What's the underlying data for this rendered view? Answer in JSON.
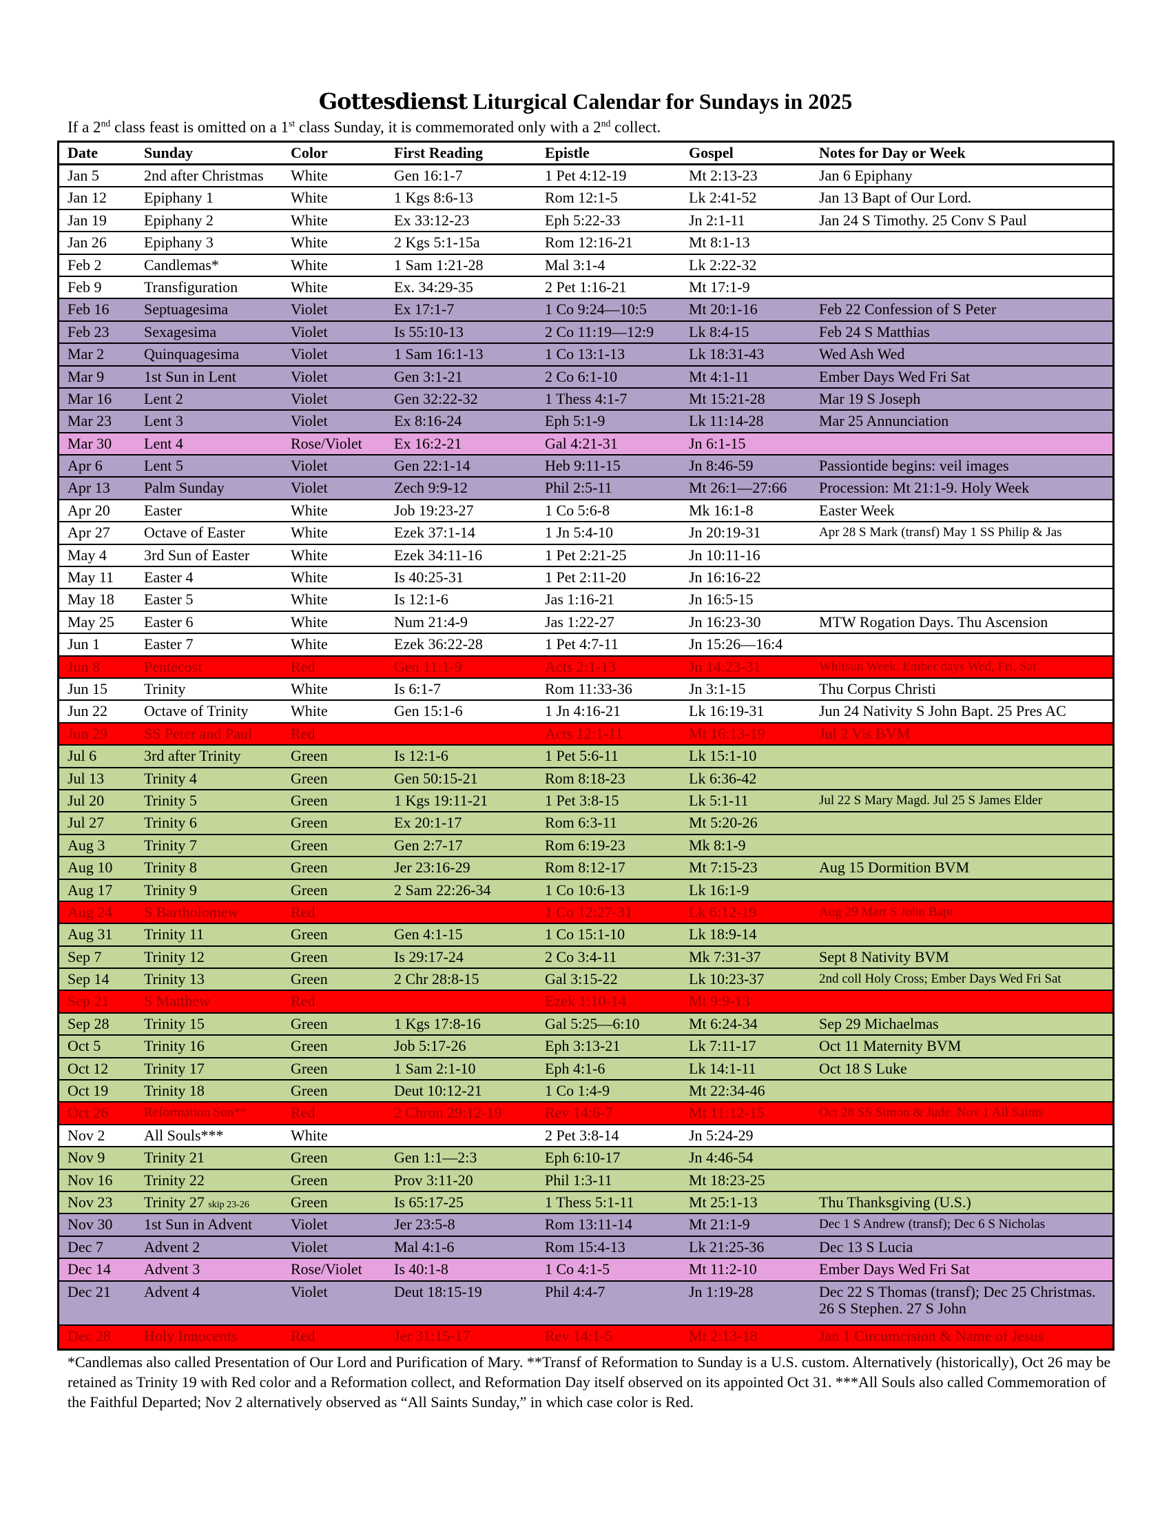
{
  "header": {
    "title_blackletter": "Gottesdienst",
    "title_rest": " Liturgical Calendar for Sundays in 2025",
    "subtitle": "If a 2nd class feast is omitted on a 1st class Sunday, it is commemorated only with a 2nd collect."
  },
  "colors": {
    "white": "#ffffff",
    "violet": "#b1a0c7",
    "rose": "#e6a2de",
    "red": "#ff0000",
    "green": "#c4d79b"
  },
  "columns": [
    "Date",
    "Sunday",
    "Color",
    "First Reading",
    "Epistle",
    "Gospel",
    "Notes for Day or Week"
  ],
  "rows": [
    {
      "date": "Jan 5",
      "sunday": "2nd after Christmas",
      "color": "White",
      "first": "Gen 16:1-7",
      "epistle": "1 Pet 4:12-19",
      "gospel": "Mt 2:13-23",
      "notes": "Jan 6 Epiphany"
    },
    {
      "date": "Jan 12",
      "sunday": "Epiphany 1",
      "color": "White",
      "first": "1 Kgs 8:6-13",
      "epistle": "Rom 12:1-5",
      "gospel": "Lk 2:41-52",
      "notes": "Jan 13 Bapt of Our Lord."
    },
    {
      "date": "Jan 19",
      "sunday": "Epiphany 2",
      "color": "White",
      "first": "Ex 33:12-23",
      "epistle": "Eph 5:22-33",
      "gospel": "Jn 2:1-11",
      "notes": "Jan 24 S Timothy. 25 Conv S Paul"
    },
    {
      "date": "Jan 26",
      "sunday": "Epiphany 3",
      "color": "White",
      "first": "2 Kgs 5:1-15a",
      "epistle": "Rom 12:16-21",
      "gospel": "Mt 8:1-13",
      "notes": ""
    },
    {
      "date": "Feb 2",
      "sunday": "Candlemas*",
      "color": "White",
      "first": "1 Sam 1:21-28",
      "epistle": "Mal 3:1-4",
      "gospel": "Lk 2:22-32",
      "notes": ""
    },
    {
      "date": "Feb 9",
      "sunday": "Transfiguration",
      "color": "White",
      "first": "Ex. 34:29-35",
      "epistle": "2 Pet 1:16-21",
      "gospel": "Mt 17:1-9",
      "notes": ""
    },
    {
      "date": "Feb 16",
      "sunday": "Septuagesima",
      "color": "Violet",
      "first": "Ex 17:1-7",
      "epistle": "1 Co 9:24—10:5",
      "gospel": "Mt 20:1-16",
      "notes": "Feb 22 Confession of S Peter"
    },
    {
      "date": "Feb 23",
      "sunday": "Sexagesima",
      "color": "Violet",
      "first": "Is 55:10-13",
      "epistle": "2 Co 11:19—12:9",
      "gospel": "Lk 8:4-15",
      "notes": "Feb 24 S Matthias"
    },
    {
      "date": "Mar 2",
      "sunday": "Quinquagesima",
      "color": "Violet",
      "first": "1 Sam 16:1-13",
      "epistle": "1 Co 13:1-13",
      "gospel": "Lk 18:31-43",
      "notes": "Wed Ash Wed"
    },
    {
      "date": "Mar 9",
      "sunday": "1st Sun in Lent",
      "color": "Violet",
      "first": "Gen 3:1-21",
      "epistle": "2 Co 6:1-10",
      "gospel": "Mt 4:1-11",
      "notes": "Ember Days Wed Fri Sat"
    },
    {
      "date": "Mar 16",
      "sunday": "Lent 2",
      "color": "Violet",
      "first": "Gen 32:22-32",
      "epistle": "1 Thess 4:1-7",
      "gospel": "Mt 15:21-28",
      "notes": "Mar 19 S Joseph"
    },
    {
      "date": "Mar 23",
      "sunday": "Lent 3",
      "color": "Violet",
      "first": "Ex 8:16-24",
      "epistle": "Eph 5:1-9",
      "gospel": "Lk 11:14-28",
      "notes": "Mar 25 Annunciation"
    },
    {
      "date": "Mar 30",
      "sunday": "Lent 4",
      "color": "Rose/Violet",
      "first": "Ex 16:2-21",
      "epistle": "Gal 4:21-31",
      "gospel": "Jn 6:1-15",
      "notes": ""
    },
    {
      "date": "Apr 6",
      "sunday": "Lent 5",
      "color": "Violet",
      "first": "Gen 22:1-14",
      "epistle": "Heb 9:11-15",
      "gospel": "Jn 8:46-59",
      "notes": "Passiontide begins: veil images"
    },
    {
      "date": "Apr 13",
      "sunday": "Palm Sunday",
      "color": "Violet",
      "first": "Zech 9:9-12",
      "epistle": "Phil 2:5-11",
      "gospel": "Mt 26:1—27:66",
      "notes": "Procession: Mt 21:1-9. Holy Week"
    },
    {
      "date": "Apr 20",
      "sunday": "Easter",
      "color": "White",
      "first": "Job 19:23-27",
      "epistle": "1 Co 5:6-8",
      "gospel": "Mk 16:1-8",
      "notes": "Easter Week"
    },
    {
      "date": "Apr 27",
      "sunday": "Octave of Easter",
      "color": "White",
      "first": "Ezek 37:1-14",
      "epistle": "1 Jn 5:4-10",
      "gospel": "Jn 20:19-31",
      "notes": "Apr 28 S Mark (transf) May 1 SS Philip & Jas",
      "small": true
    },
    {
      "date": "May 4",
      "sunday": "3rd Sun of Easter",
      "color": "White",
      "first": "Ezek 34:11-16",
      "epistle": "1 Pet 2:21-25",
      "gospel": "Jn 10:11-16",
      "notes": ""
    },
    {
      "date": "May 11",
      "sunday": "Easter 4",
      "color": "White",
      "first": "Is 40:25-31",
      "epistle": "1 Pet 2:11-20",
      "gospel": "Jn 16:16-22",
      "notes": ""
    },
    {
      "date": "May 18",
      "sunday": "Easter 5",
      "color": "White",
      "first": "Is 12:1-6",
      "epistle": "Jas 1:16-21",
      "gospel": "Jn 16:5-15",
      "notes": ""
    },
    {
      "date": "May 25",
      "sunday": "Easter 6",
      "color": "White",
      "first": "Num 21:4-9",
      "epistle": "Jas 1:22-27",
      "gospel": "Jn 16:23-30",
      "notes": "MTW Rogation Days. Thu Ascension"
    },
    {
      "date": "Jun 1",
      "sunday": "Easter 7",
      "color": "White",
      "first": "Ezek 36:22-28",
      "epistle": "1 Pet 4:7-11",
      "gospel": "Jn 15:26—16:4",
      "notes": ""
    },
    {
      "date": "Jun 8",
      "sunday": "Pentecost",
      "color": "Red",
      "first": "Gen 11:1-9",
      "epistle": "Acts 2:1-13",
      "gospel": "Jn 14:23-31",
      "notes": "Whitsun Week. Ember days Wed, Fri, Sat",
      "small": true
    },
    {
      "date": "Jun 15",
      "sunday": "Trinity",
      "color": "White",
      "first": "Is 6:1-7",
      "epistle": "Rom 11:33-36",
      "gospel": "Jn 3:1-15",
      "notes": "Thu Corpus Christi"
    },
    {
      "date": "Jun 22",
      "sunday": "Octave of Trinity",
      "color": "White",
      "first": "Gen 15:1-6",
      "epistle": "1 Jn 4:16-21",
      "gospel": "Lk 16:19-31",
      "notes": "Jun 24 Nativity S John Bapt. 25 Pres AC"
    },
    {
      "date": "Jun 29",
      "sunday": "SS Peter and Paul",
      "color": "Red",
      "first": "",
      "epistle": "Acts 12:1-11",
      "gospel": "Mt 16:13-19",
      "notes": "Jul 2 Vis BVM"
    },
    {
      "date": "Jul 6",
      "sunday": "3rd after Trinity",
      "color": "Green",
      "first": "Is 12:1-6",
      "epistle": "1 Pet 5:6-11",
      "gospel": "Lk 15:1-10",
      "notes": ""
    },
    {
      "date": "Jul 13",
      "sunday": "Trinity 4",
      "color": "Green",
      "first": "Gen 50:15-21",
      "epistle": "Rom 8:18-23",
      "gospel": "Lk 6:36-42",
      "notes": ""
    },
    {
      "date": "Jul 20",
      "sunday": "Trinity 5",
      "color": "Green",
      "first": "1 Kgs 19:11-21",
      "epistle": "1 Pet 3:8-15",
      "gospel": "Lk 5:1-11",
      "notes": "Jul 22 S Mary Magd. Jul 25 S James Elder",
      "small": true
    },
    {
      "date": "Jul 27",
      "sunday": "Trinity 6",
      "color": "Green",
      "first": "Ex 20:1-17",
      "epistle": "Rom 6:3-11",
      "gospel": "Mt 5:20-26",
      "notes": ""
    },
    {
      "date": "Aug 3",
      "sunday": "Trinity 7",
      "color": "Green",
      "first": "Gen 2:7-17",
      "epistle": "Rom 6:19-23",
      "gospel": "Mk 8:1-9",
      "notes": ""
    },
    {
      "date": "Aug 10",
      "sunday": "Trinity 8",
      "color": "Green",
      "first": "Jer 23:16-29",
      "epistle": "Rom 8:12-17",
      "gospel": "Mt 7:15-23",
      "notes": "Aug 15 Dormition BVM"
    },
    {
      "date": "Aug 17",
      "sunday": "Trinity 9",
      "color": "Green",
      "first": "2 Sam 22:26-34",
      "epistle": "1 Co 10:6-13",
      "gospel": "Lk 16:1-9",
      "notes": ""
    },
    {
      "date": "Aug 24",
      "sunday": "S Bartholomew",
      "color": "Red",
      "first": "",
      "epistle": "1 Co 12:27-31",
      "gospel": "Lk 6:12-19",
      "notes": "Aug 29 Mart S John Bapt",
      "small": true
    },
    {
      "date": "Aug 31",
      "sunday": "Trinity 11",
      "color": "Green",
      "first": "Gen 4:1-15",
      "epistle": "1 Co 15:1-10",
      "gospel": "Lk 18:9-14",
      "notes": ""
    },
    {
      "date": "Sep 7",
      "sunday": "Trinity 12",
      "color": "Green",
      "first": "Is 29:17-24",
      "epistle": "2 Co 3:4-11",
      "gospel": "Mk 7:31-37",
      "notes": "Sept 8 Nativity BVM"
    },
    {
      "date": "Sep 14",
      "sunday": "Trinity 13",
      "color": "Green",
      "first": "2 Chr 28:8-15",
      "epistle": "Gal 3:15-22",
      "gospel": "Lk 10:23-37",
      "notes": "2nd coll Holy Cross; Ember Days Wed Fri Sat",
      "small": true
    },
    {
      "date": "Sep 21",
      "sunday": "S Matthew",
      "color": "Red",
      "first": "",
      "epistle": "Ezek 1:10-14",
      "gospel": "Mt 9:9-13",
      "notes": ""
    },
    {
      "date": "Sep 28",
      "sunday": "Trinity 15",
      "color": "Green",
      "first": "1 Kgs 17:8-16",
      "epistle": "Gal 5:25—6:10",
      "gospel": "Mt 6:24-34",
      "notes": "Sep 29 Michaelmas"
    },
    {
      "date": "Oct 5",
      "sunday": "Trinity 16",
      "color": "Green",
      "first": "Job 5:17-26",
      "epistle": "Eph 3:13-21",
      "gospel": "Lk 7:11-17",
      "notes": "Oct 11 Maternity BVM"
    },
    {
      "date": "Oct 12",
      "sunday": "Trinity 17",
      "color": "Green",
      "first": "1 Sam 2:1-10",
      "epistle": "Eph 4:1-6",
      "gospel": "Lk 14:1-11",
      "notes": "Oct 18 S Luke"
    },
    {
      "date": "Oct 19",
      "sunday": "Trinity 18",
      "color": "Green",
      "first": "Deut 10:12-21",
      "epistle": "1 Co 1:4-9",
      "gospel": "Mt 22:34-46",
      "notes": ""
    },
    {
      "date": "Oct 26",
      "sunday": "Reformation Sun**",
      "sunday_small": true,
      "color": "Red",
      "first": "2 Chron 29:12-19",
      "epistle": "Rev 14:6-7",
      "gospel": "Mt 11:12-15",
      "notes": "Oct 28 SS Simon & Jude. Nov 1 All Saints",
      "small": true
    },
    {
      "date": "Nov 2",
      "sunday": "All Souls***",
      "color": "White",
      "first": "",
      "epistle": "2 Pet 3:8-14",
      "gospel": "Jn 5:24-29",
      "notes": ""
    },
    {
      "date": "Nov 9",
      "sunday": "Trinity 21",
      "color": "Green",
      "first": "Gen 1:1—2:3",
      "epistle": "Eph 6:10-17",
      "gospel": "Jn 4:46-54",
      "notes": ""
    },
    {
      "date": "Nov 16",
      "sunday": "Trinity 22",
      "color": "Green",
      "first": "Prov 3:11-20",
      "epistle": "Phil 1:3-11",
      "gospel": "Mt 18:23-25",
      "notes": ""
    },
    {
      "date": "Nov 23",
      "sunday": "Trinity 27",
      "sunday_note": "skip 23-26",
      "color": "Green",
      "first": "Is 65:17-25",
      "epistle": "1 Thess 5:1-11",
      "gospel": "Mt 25:1-13",
      "notes": "Thu Thanksgiving (U.S.)"
    },
    {
      "date": "Nov 30",
      "sunday": "1st Sun in Advent",
      "color": "Violet",
      "first": "Jer 23:5-8",
      "epistle": "Rom 13:11-14",
      "gospel": "Mt 21:1-9",
      "notes": "Dec 1 S Andrew (transf); Dec 6 S Nicholas",
      "small": true
    },
    {
      "date": "Dec 7",
      "sunday": "Advent 2",
      "color": "Violet",
      "first": "Mal 4:1-6",
      "epistle": "Rom 15:4-13",
      "gospel": "Lk 21:25-36",
      "notes": "Dec 13 S Lucia"
    },
    {
      "date": "Dec 14",
      "sunday": "Advent 3",
      "color": "Rose/Violet",
      "first": "Is 40:1-8",
      "epistle": "1 Co 4:1-5",
      "gospel": "Mt 11:2-10",
      "notes": "Ember Days Wed Fri Sat"
    },
    {
      "date": "Dec 21",
      "sunday": "Advent 4",
      "color": "Violet",
      "first": "Deut 18:15-19",
      "epistle": "Phil 4:4-7",
      "gospel": "Jn 1:19-28",
      "notes": "Dec 22 S Thomas (transf); Dec 25 Christmas. 26 S Stephen. 27 S John",
      "double": true
    },
    {
      "date": "Dec 28",
      "sunday": "Holy Innocents",
      "color": "Red",
      "first": "Jer 31:15-17",
      "epistle": "Rev 14:1-5",
      "gospel": "Mt 2:13-18",
      "notes": "Jan 1 Circumcision & Name of Jesus"
    }
  ],
  "footnote": "*Candlemas also called Presentation of Our Lord and Purification of Mary. **Transf of Reformation to Sunday is a U.S. custom. Alternatively (historically), Oct 26 may be retained as Trinity 19 with Red color and a Reformation collect, and Reformation Day itself observed on its appointed Oct 31. ***All Souls also called Commemoration of the Faithful Departed; Nov 2 alternatively observed as “All Saints Sunday,” in which case color is Red."
}
